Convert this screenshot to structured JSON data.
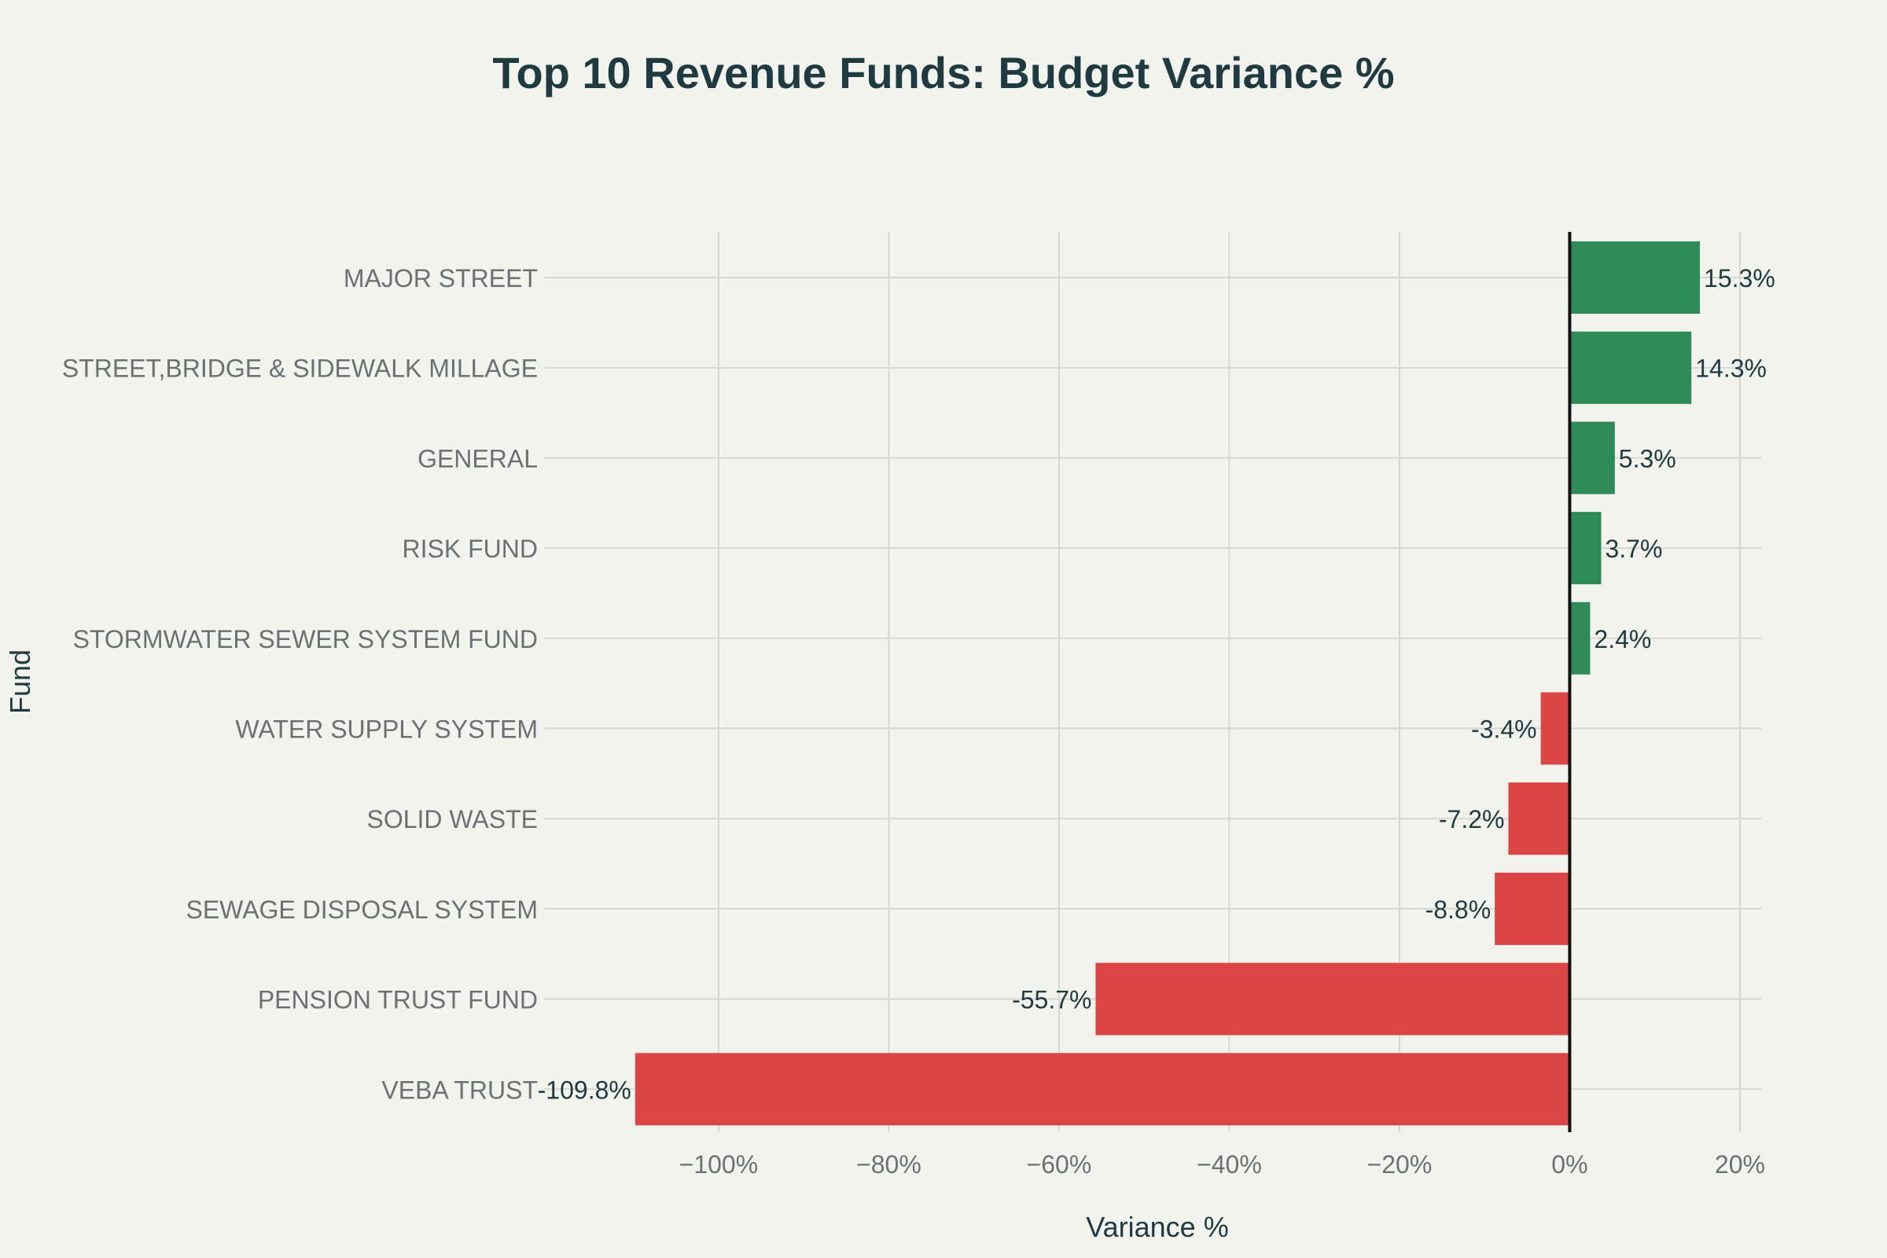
{
  "chart_data": {
    "type": "bar",
    "orientation": "horizontal",
    "title": "Top 10 Revenue Funds: Budget Variance %",
    "xlabel": "Variance %",
    "ylabel": "Fund",
    "categories": [
      "MAJOR STREET",
      "STREET,BRIDGE & SIDEWALK MILLAGE",
      "GENERAL",
      "RISK FUND",
      "STORMWATER SEWER SYSTEM FUND",
      "WATER SUPPLY SYSTEM",
      "SOLID WASTE",
      "SEWAGE DISPOSAL SYSTEM",
      "PENSION TRUST FUND",
      "VEBA TRUST"
    ],
    "values": [
      15.3,
      14.3,
      5.3,
      3.7,
      2.4,
      -3.4,
      -7.2,
      -8.8,
      -55.7,
      -109.8
    ],
    "data_labels": [
      "15.3%",
      "14.3%",
      "5.3%",
      "3.7%",
      "2.4%",
      "-3.4%",
      "-7.2%",
      "-8.8%",
      "-55.7%",
      "-109.8%"
    ],
    "xticks": [
      -100,
      -80,
      -60,
      -40,
      -20,
      0,
      20
    ],
    "xtick_labels": [
      "−100%",
      "−80%",
      "−60%",
      "−40%",
      "−20%",
      "0%",
      "20%"
    ],
    "xlim": [
      -120.5,
      22.5
    ],
    "grid": true,
    "legend": "none",
    "colors": {
      "positive": "#2e8b57",
      "negative": "#db4545",
      "background": "#f3f3ee",
      "title": "#1f3a40",
      "axis_text": "#6b7173",
      "grid": "#d6d7d2",
      "zero_line": "#111111",
      "data_label": "#1f3a40"
    }
  }
}
